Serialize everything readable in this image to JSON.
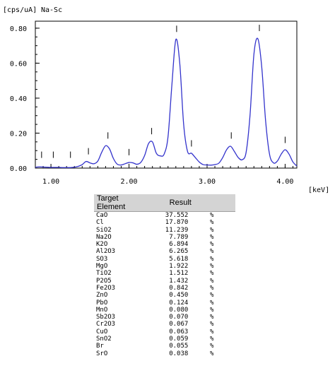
{
  "chart_data": {
    "type": "line",
    "ylabel": "[cps/uA]",
    "title": "Na-Sc",
    "xlabel": "[keV]",
    "xlim": [
      0.8,
      4.15
    ],
    "ylim": [
      0,
      0.84
    ],
    "x_ticks": [
      "1.00",
      "2.00",
      "3.00",
      "4.00"
    ],
    "x_tick_values": [
      1.0,
      2.0,
      3.0,
      4.0
    ],
    "y_ticks": [
      "0.00",
      "0.20",
      "0.40",
      "0.60",
      "0.80"
    ],
    "y_tick_values": [
      0.0,
      0.2,
      0.4,
      0.6,
      0.8
    ],
    "line_color": "#3333cc",
    "grid": false,
    "series": [
      {
        "x": [
          0.8,
          0.85,
          0.9,
          0.95,
          1.0,
          1.05,
          1.1,
          1.15,
          1.2,
          1.25,
          1.3,
          1.35,
          1.4,
          1.45,
          1.5,
          1.55,
          1.6,
          1.65,
          1.7,
          1.75,
          1.8,
          1.85,
          1.9,
          1.95,
          2.0,
          2.05,
          2.1,
          2.15,
          2.2,
          2.25,
          2.3,
          2.35,
          2.4,
          2.45,
          2.5,
          2.55,
          2.6,
          2.65,
          2.7,
          2.75,
          2.8,
          2.85,
          2.9,
          2.95,
          3.0,
          3.05,
          3.1,
          3.15,
          3.2,
          3.25,
          3.3,
          3.35,
          3.4,
          3.45,
          3.5,
          3.55,
          3.6,
          3.65,
          3.7,
          3.75,
          3.8,
          3.85,
          3.9,
          3.95,
          4.0,
          4.05,
          4.1,
          4.15
        ],
        "y": [
          0.005,
          0.007,
          0.006,
          0.005,
          0.004,
          0.004,
          0.004,
          0.003,
          0.003,
          0.003,
          0.005,
          0.01,
          0.02,
          0.038,
          0.03,
          0.025,
          0.04,
          0.09,
          0.128,
          0.11,
          0.055,
          0.022,
          0.018,
          0.025,
          0.032,
          0.03,
          0.022,
          0.032,
          0.072,
          0.14,
          0.15,
          0.085,
          0.07,
          0.08,
          0.18,
          0.48,
          0.735,
          0.6,
          0.25,
          0.095,
          0.085,
          0.06,
          0.035,
          0.02,
          0.018,
          0.017,
          0.02,
          0.028,
          0.06,
          0.105,
          0.125,
          0.095,
          0.06,
          0.048,
          0.09,
          0.3,
          0.65,
          0.74,
          0.58,
          0.27,
          0.08,
          0.03,
          0.04,
          0.08,
          0.105,
          0.08,
          0.035,
          0.012
        ]
      }
    ],
    "peak_markers": [
      {
        "x": 0.88,
        "y": 0.03
      },
      {
        "x": 1.03,
        "y": 0.03
      },
      {
        "x": 1.25,
        "y": 0.03
      },
      {
        "x": 1.48,
        "y": 0.05
      },
      {
        "x": 1.73,
        "y": 0.14
      },
      {
        "x": 2.0,
        "y": 0.045
      },
      {
        "x": 2.29,
        "y": 0.165
      },
      {
        "x": 2.61,
        "y": 0.75
      },
      {
        "x": 2.8,
        "y": 0.095
      },
      {
        "x": 3.31,
        "y": 0.14
      },
      {
        "x": 3.67,
        "y": 0.755
      },
      {
        "x": 4.0,
        "y": 0.115
      }
    ]
  },
  "table": {
    "header_element": "Target Element",
    "header_result": "Result",
    "rows": [
      {
        "element": "CaO",
        "value": "37.552",
        "unit": "%"
      },
      {
        "element": "Cl",
        "value": "17.870",
        "unit": "%"
      },
      {
        "element": "SiO2",
        "value": "11.239",
        "unit": "%"
      },
      {
        "element": "Na2O",
        "value": "7.789",
        "unit": "%"
      },
      {
        "element": "K2O",
        "value": "6.894",
        "unit": "%"
      },
      {
        "element": "Al2O3",
        "value": "6.265",
        "unit": "%"
      },
      {
        "element": "SO3",
        "value": "5.618",
        "unit": "%"
      },
      {
        "element": "MgO",
        "value": "1.922",
        "unit": "%"
      },
      {
        "element": "TiO2",
        "value": "1.512",
        "unit": "%"
      },
      {
        "element": "P2O5",
        "value": "1.432",
        "unit": "%"
      },
      {
        "element": "Fe2O3",
        "value": "0.842",
        "unit": "%"
      },
      {
        "element": "ZnO",
        "value": "0.450",
        "unit": "%"
      },
      {
        "element": "PbO",
        "value": "0.124",
        "unit": "%"
      },
      {
        "element": "MnO",
        "value": "0.080",
        "unit": "%"
      },
      {
        "element": "Sb2O3",
        "value": "0.070",
        "unit": "%"
      },
      {
        "element": "Cr2O3",
        "value": "0.067",
        "unit": "%"
      },
      {
        "element": "CuO",
        "value": "0.063",
        "unit": "%"
      },
      {
        "element": "SnO2",
        "value": "0.059",
        "unit": "%"
      },
      {
        "element": "Br",
        "value": "0.055",
        "unit": "%"
      },
      {
        "element": "SrO",
        "value": "0.038",
        "unit": "%"
      }
    ]
  }
}
